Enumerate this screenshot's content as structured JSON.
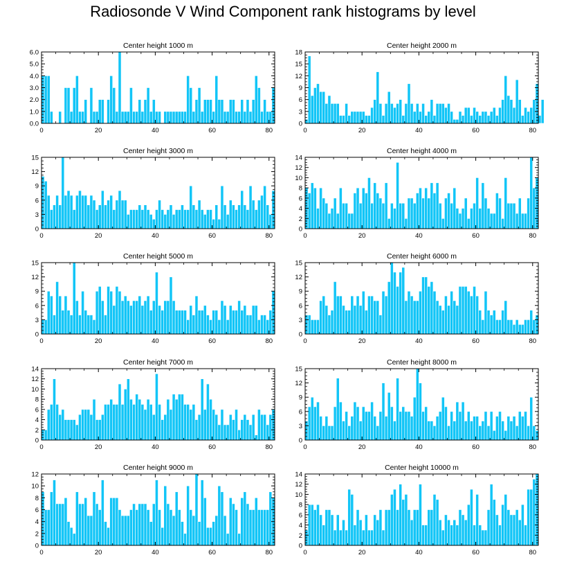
{
  "title": "Radiosonde V Wind Component rank histograms by level",
  "colors": {
    "bar": "#12c5f7",
    "bar_edge": "#ffffff",
    "axis": "#000000"
  },
  "chart_data": [
    {
      "type": "bar",
      "title": "Center height 1000 m",
      "xlim": [
        0,
        82
      ],
      "ylim": [
        0,
        6
      ],
      "xticks": [
        0,
        20,
        40,
        60,
        80
      ],
      "yticks": [
        "0.0",
        "1.0",
        "2.0",
        "3.0",
        "4.0",
        "5.0",
        "6.0"
      ],
      "values": [
        4,
        4,
        4,
        1,
        0,
        0,
        1,
        0,
        3,
        3,
        1,
        3,
        4,
        1,
        1,
        2,
        0,
        3,
        1,
        1,
        2,
        2,
        0,
        2,
        4,
        3,
        1,
        6,
        1,
        1,
        1,
        3,
        1,
        1,
        2,
        1,
        2,
        3,
        1,
        2,
        1,
        1,
        0,
        1,
        1,
        1,
        1,
        1,
        1,
        1,
        1,
        4,
        3,
        1,
        2,
        3,
        1,
        2,
        2,
        2,
        1,
        4,
        2,
        2,
        1,
        1,
        2,
        2,
        1,
        1,
        2,
        1,
        2,
        1,
        2,
        4,
        3,
        1,
        2,
        1,
        1,
        3
      ]
    },
    {
      "type": "bar",
      "title": "Center height 2000 m",
      "xlim": [
        0,
        82
      ],
      "ylim": [
        0,
        18
      ],
      "xticks": [
        0,
        20,
        40,
        60,
        80
      ],
      "yticks": [
        "0",
        "3",
        "6",
        "9",
        "12",
        "15",
        "18"
      ],
      "values": [
        1,
        17,
        7,
        9,
        10,
        8,
        8,
        5,
        7,
        5,
        5,
        5,
        2,
        2,
        5,
        2,
        3,
        3,
        3,
        3,
        3,
        2,
        2,
        4,
        6,
        13,
        5,
        2,
        5,
        8,
        5,
        4,
        5,
        6,
        2,
        5,
        10,
        5,
        3,
        5,
        3,
        5,
        2,
        3,
        6,
        2,
        5,
        5,
        5,
        4,
        5,
        3,
        1,
        1,
        3,
        2,
        4,
        4,
        2,
        4,
        3,
        2,
        3,
        3,
        2,
        3,
        4,
        2,
        4,
        6,
        12,
        7,
        6,
        4,
        11,
        6,
        2,
        4,
        3,
        4,
        6,
        10,
        2,
        6
      ]
    },
    {
      "type": "bar",
      "title": "Center height 3000 m",
      "xlim": [
        0,
        82
      ],
      "ylim": [
        0,
        15
      ],
      "xticks": [
        0,
        20,
        40,
        60,
        80
      ],
      "yticks": [
        "0",
        "3",
        "6",
        "9",
        "12",
        "15"
      ],
      "values": [
        11,
        10,
        7,
        4,
        5,
        7,
        5,
        15,
        7,
        8,
        7,
        4,
        7,
        8,
        7,
        7,
        5,
        7,
        6,
        4,
        5,
        8,
        5,
        6,
        7,
        4,
        6,
        8,
        6,
        6,
        3,
        4,
        4,
        4,
        5,
        4,
        5,
        4,
        3,
        2,
        4,
        6,
        4,
        3,
        4,
        5,
        3,
        4,
        4,
        5,
        4,
        4,
        9,
        5,
        4,
        6,
        4,
        3,
        4,
        4,
        2,
        5,
        2,
        9,
        5,
        3,
        6,
        5,
        4,
        5,
        8,
        5,
        4,
        9,
        6,
        4,
        6,
        7,
        9,
        5,
        3,
        8
      ]
    },
    {
      "type": "bar",
      "title": "Center height 4000 m",
      "xlim": [
        0,
        82
      ],
      "ylim": [
        0,
        14
      ],
      "xticks": [
        0,
        20,
        40,
        60,
        80
      ],
      "yticks": [
        "0",
        "2",
        "4",
        "6",
        "8",
        "10",
        "12",
        "14"
      ],
      "values": [
        8,
        7,
        9,
        8,
        4,
        8,
        6,
        5,
        3,
        4,
        6,
        3,
        8,
        5,
        5,
        3,
        3,
        7,
        8,
        5,
        8,
        7,
        10,
        5,
        9,
        7,
        6,
        5,
        9,
        2,
        5,
        4,
        13,
        5,
        5,
        2,
        6,
        6,
        5,
        7,
        8,
        6,
        8,
        6,
        9,
        7,
        9,
        5,
        2,
        6,
        7,
        5,
        8,
        4,
        3,
        4,
        6,
        2,
        4,
        5,
        10,
        4,
        9,
        6,
        4,
        3,
        3,
        7,
        6,
        2,
        10,
        5,
        5,
        5,
        3,
        6,
        3,
        3,
        6,
        14,
        8,
        10
      ]
    },
    {
      "type": "bar",
      "title": "Center height 5000 m",
      "xlim": [
        0,
        82
      ],
      "ylim": [
        0,
        15
      ],
      "xticks": [
        0,
        20,
        40,
        60,
        80
      ],
      "yticks": [
        "0",
        "3",
        "6",
        "9",
        "12",
        "15"
      ],
      "values": [
        3,
        3,
        9,
        8,
        4,
        11,
        8,
        5,
        8,
        5,
        4,
        15,
        7,
        4,
        9,
        5,
        4,
        4,
        3,
        9,
        10,
        7,
        4,
        10,
        9,
        6,
        10,
        9,
        7,
        8,
        7,
        6,
        7,
        7,
        8,
        6,
        7,
        8,
        5,
        7,
        13,
        6,
        5,
        7,
        7,
        12,
        7,
        5,
        5,
        5,
        5,
        3,
        6,
        4,
        8,
        5,
        5,
        6,
        4,
        3,
        5,
        5,
        3,
        7,
        6,
        3,
        6,
        5,
        5,
        7,
        5,
        6,
        4,
        4,
        6,
        6,
        3,
        4,
        4,
        3,
        5,
        9
      ]
    },
    {
      "type": "bar",
      "title": "Center height 6000 m",
      "xlim": [
        0,
        82
      ],
      "ylim": [
        0,
        15
      ],
      "xticks": [
        0,
        20,
        40,
        60,
        80
      ],
      "yticks": [
        "0",
        "3",
        "6",
        "9",
        "12",
        "15"
      ],
      "values": [
        4,
        4,
        3,
        3,
        3,
        7,
        8,
        6,
        4,
        5,
        11,
        8,
        8,
        6,
        5,
        5,
        8,
        6,
        8,
        6,
        9,
        5,
        8,
        8,
        7,
        7,
        4,
        9,
        8,
        11,
        15,
        13,
        10,
        13,
        14,
        7,
        9,
        8,
        7,
        7,
        9,
        12,
        12,
        10,
        11,
        9,
        7,
        6,
        5,
        8,
        6,
        9,
        7,
        6,
        10,
        10,
        10,
        9,
        8,
        10,
        8,
        5,
        3,
        9,
        5,
        4,
        5,
        3,
        3,
        5,
        7,
        3,
        3,
        2,
        3,
        2,
        2,
        3,
        3,
        5,
        3,
        4
      ]
    },
    {
      "type": "bar",
      "title": "Center height 7000 m",
      "xlim": [
        0,
        82
      ],
      "ylim": [
        0,
        14
      ],
      "xticks": [
        0,
        20,
        40,
        60,
        80
      ],
      "yticks": [
        "0",
        "2",
        "4",
        "6",
        "8",
        "10",
        "12",
        "14"
      ],
      "values": [
        2,
        2,
        6,
        7,
        12,
        7,
        5,
        6,
        4,
        4,
        4,
        4,
        3,
        5,
        6,
        6,
        6,
        5,
        8,
        4,
        4,
        5,
        7,
        7,
        8,
        7,
        7,
        11,
        7,
        10,
        12,
        8,
        7,
        9,
        8,
        7,
        6,
        8,
        7,
        5,
        13,
        7,
        4,
        5,
        8,
        6,
        9,
        8,
        9,
        9,
        7,
        7,
        6,
        7,
        4,
        5,
        12,
        6,
        11,
        8,
        6,
        5,
        3,
        6,
        3,
        3,
        5,
        4,
        6,
        2,
        4,
        5,
        4,
        3,
        5,
        1,
        6,
        5,
        5,
        3,
        5,
        6
      ]
    },
    {
      "type": "bar",
      "title": "Center height 8000 m",
      "xlim": [
        0,
        82
      ],
      "ylim": [
        0,
        15
      ],
      "xticks": [
        0,
        20,
        40,
        60,
        80
      ],
      "yticks": [
        "0",
        "3",
        "6",
        "9",
        "12",
        "15"
      ],
      "values": [
        4,
        7,
        9,
        7,
        8,
        5,
        3,
        5,
        3,
        3,
        7,
        13,
        8,
        4,
        6,
        3,
        5,
        8,
        7,
        4,
        7,
        6,
        6,
        8,
        5,
        3,
        6,
        12,
        5,
        10,
        7,
        4,
        13,
        6,
        7,
        6,
        6,
        5,
        9,
        15,
        12,
        6,
        7,
        4,
        4,
        3,
        5,
        6,
        9,
        7,
        3,
        6,
        4,
        8,
        6,
        8,
        4,
        6,
        4,
        5,
        5,
        3,
        4,
        6,
        3,
        6,
        2,
        5,
        6,
        4,
        2,
        5,
        4,
        5,
        3,
        6,
        5,
        6,
        3,
        9,
        3,
        2
      ]
    },
    {
      "type": "bar",
      "title": "Center height 9000 m",
      "xlim": [
        0,
        82
      ],
      "ylim": [
        0,
        12
      ],
      "xticks": [
        0,
        20,
        40,
        60,
        80
      ],
      "yticks": [
        "0",
        "2",
        "4",
        "6",
        "8",
        "10",
        "12"
      ],
      "values": [
        9,
        6,
        6,
        9,
        11,
        7,
        7,
        7,
        8,
        4,
        3,
        2,
        9,
        7,
        7,
        8,
        5,
        5,
        9,
        7,
        6,
        11,
        4,
        3,
        8,
        8,
        8,
        6,
        5,
        5,
        5,
        6,
        7,
        6,
        7,
        7,
        7,
        6,
        4,
        7,
        11,
        6,
        3,
        10,
        7,
        6,
        5,
        9,
        6,
        4,
        2,
        10,
        6,
        5,
        12,
        4,
        11,
        8,
        3,
        3,
        4,
        5,
        10,
        9,
        5,
        2,
        8,
        7,
        6,
        2,
        8,
        9,
        7,
        6,
        6,
        8,
        6,
        6,
        6,
        6,
        9,
        8
      ]
    },
    {
      "type": "bar",
      "title": "Center height 10000 m",
      "xlim": [
        0,
        82
      ],
      "ylim": [
        0,
        14
      ],
      "xticks": [
        0,
        20,
        40,
        60,
        80
      ],
      "yticks": [
        "0",
        "2",
        "4",
        "6",
        "8",
        "10",
        "12",
        "14"
      ],
      "values": [
        3,
        8,
        8,
        7,
        8,
        6,
        4,
        7,
        7,
        6,
        3,
        6,
        3,
        5,
        3,
        11,
        10,
        4,
        7,
        5,
        3,
        6,
        3,
        3,
        6,
        5,
        7,
        3,
        7,
        7,
        10,
        11,
        7,
        12,
        9,
        10,
        7,
        5,
        7,
        7,
        12,
        4,
        4,
        7,
        7,
        10,
        9,
        5,
        3,
        6,
        5,
        4,
        5,
        4,
        7,
        6,
        5,
        8,
        11,
        4,
        10,
        4,
        3,
        3,
        7,
        12,
        9,
        6,
        4,
        8,
        10,
        7,
        6,
        6,
        7,
        5,
        8,
        4,
        11,
        11,
        13,
        14
      ]
    }
  ]
}
